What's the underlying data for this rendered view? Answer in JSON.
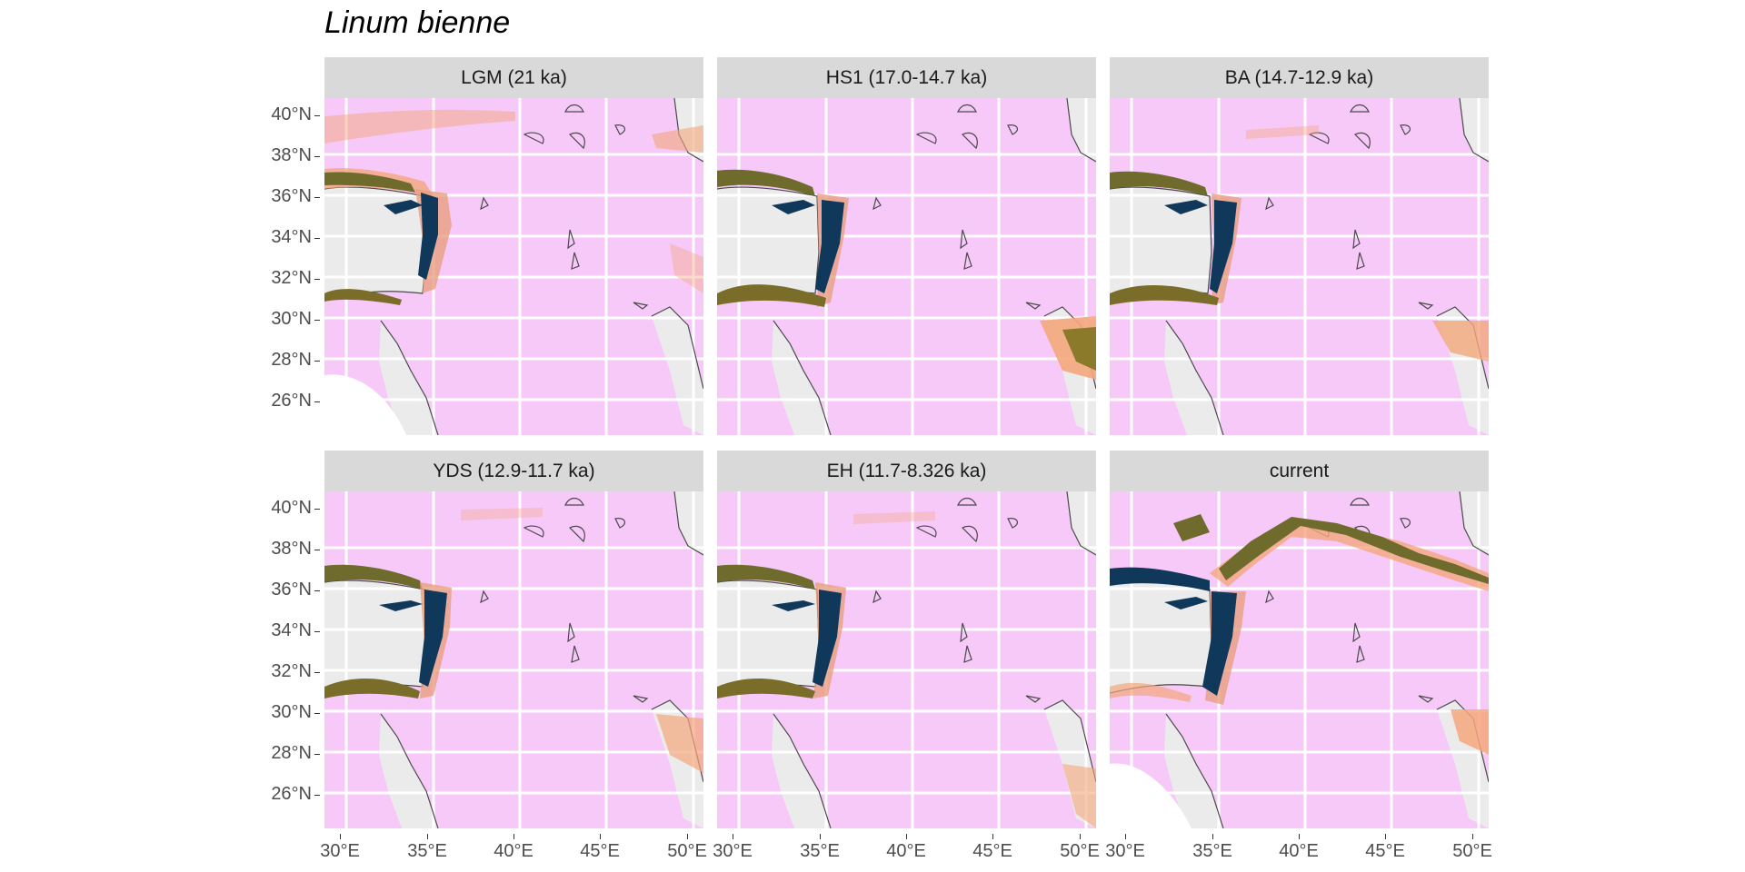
{
  "figure": {
    "title": "Linum bienne",
    "panels": [
      {
        "label": "LGM (21 ka)"
      },
      {
        "label": "HS1 (17.0-14.7 ka)"
      },
      {
        "label": "BA (14.7-12.9 ka)"
      },
      {
        "label": "YDS (12.9-11.7 ka)"
      },
      {
        "label": "EH (11.7-8.326 ka)"
      },
      {
        "label": "current"
      }
    ],
    "y_ticks": [
      "40°N",
      "38°N",
      "36°N",
      "34°N",
      "32°N",
      "30°N",
      "28°N",
      "26°N"
    ],
    "x_ticks": [
      "30°E",
      "35°E",
      "40°E",
      "45°E",
      "50°E"
    ],
    "colors": {
      "background_land": "#f6c9f9",
      "sea": "#ebebeb",
      "strip": "#d9d9d9",
      "suitability_low": "#f4a77c",
      "suitability_mid": "#8a7a2a",
      "suitability_high": "#10385a"
    }
  }
}
